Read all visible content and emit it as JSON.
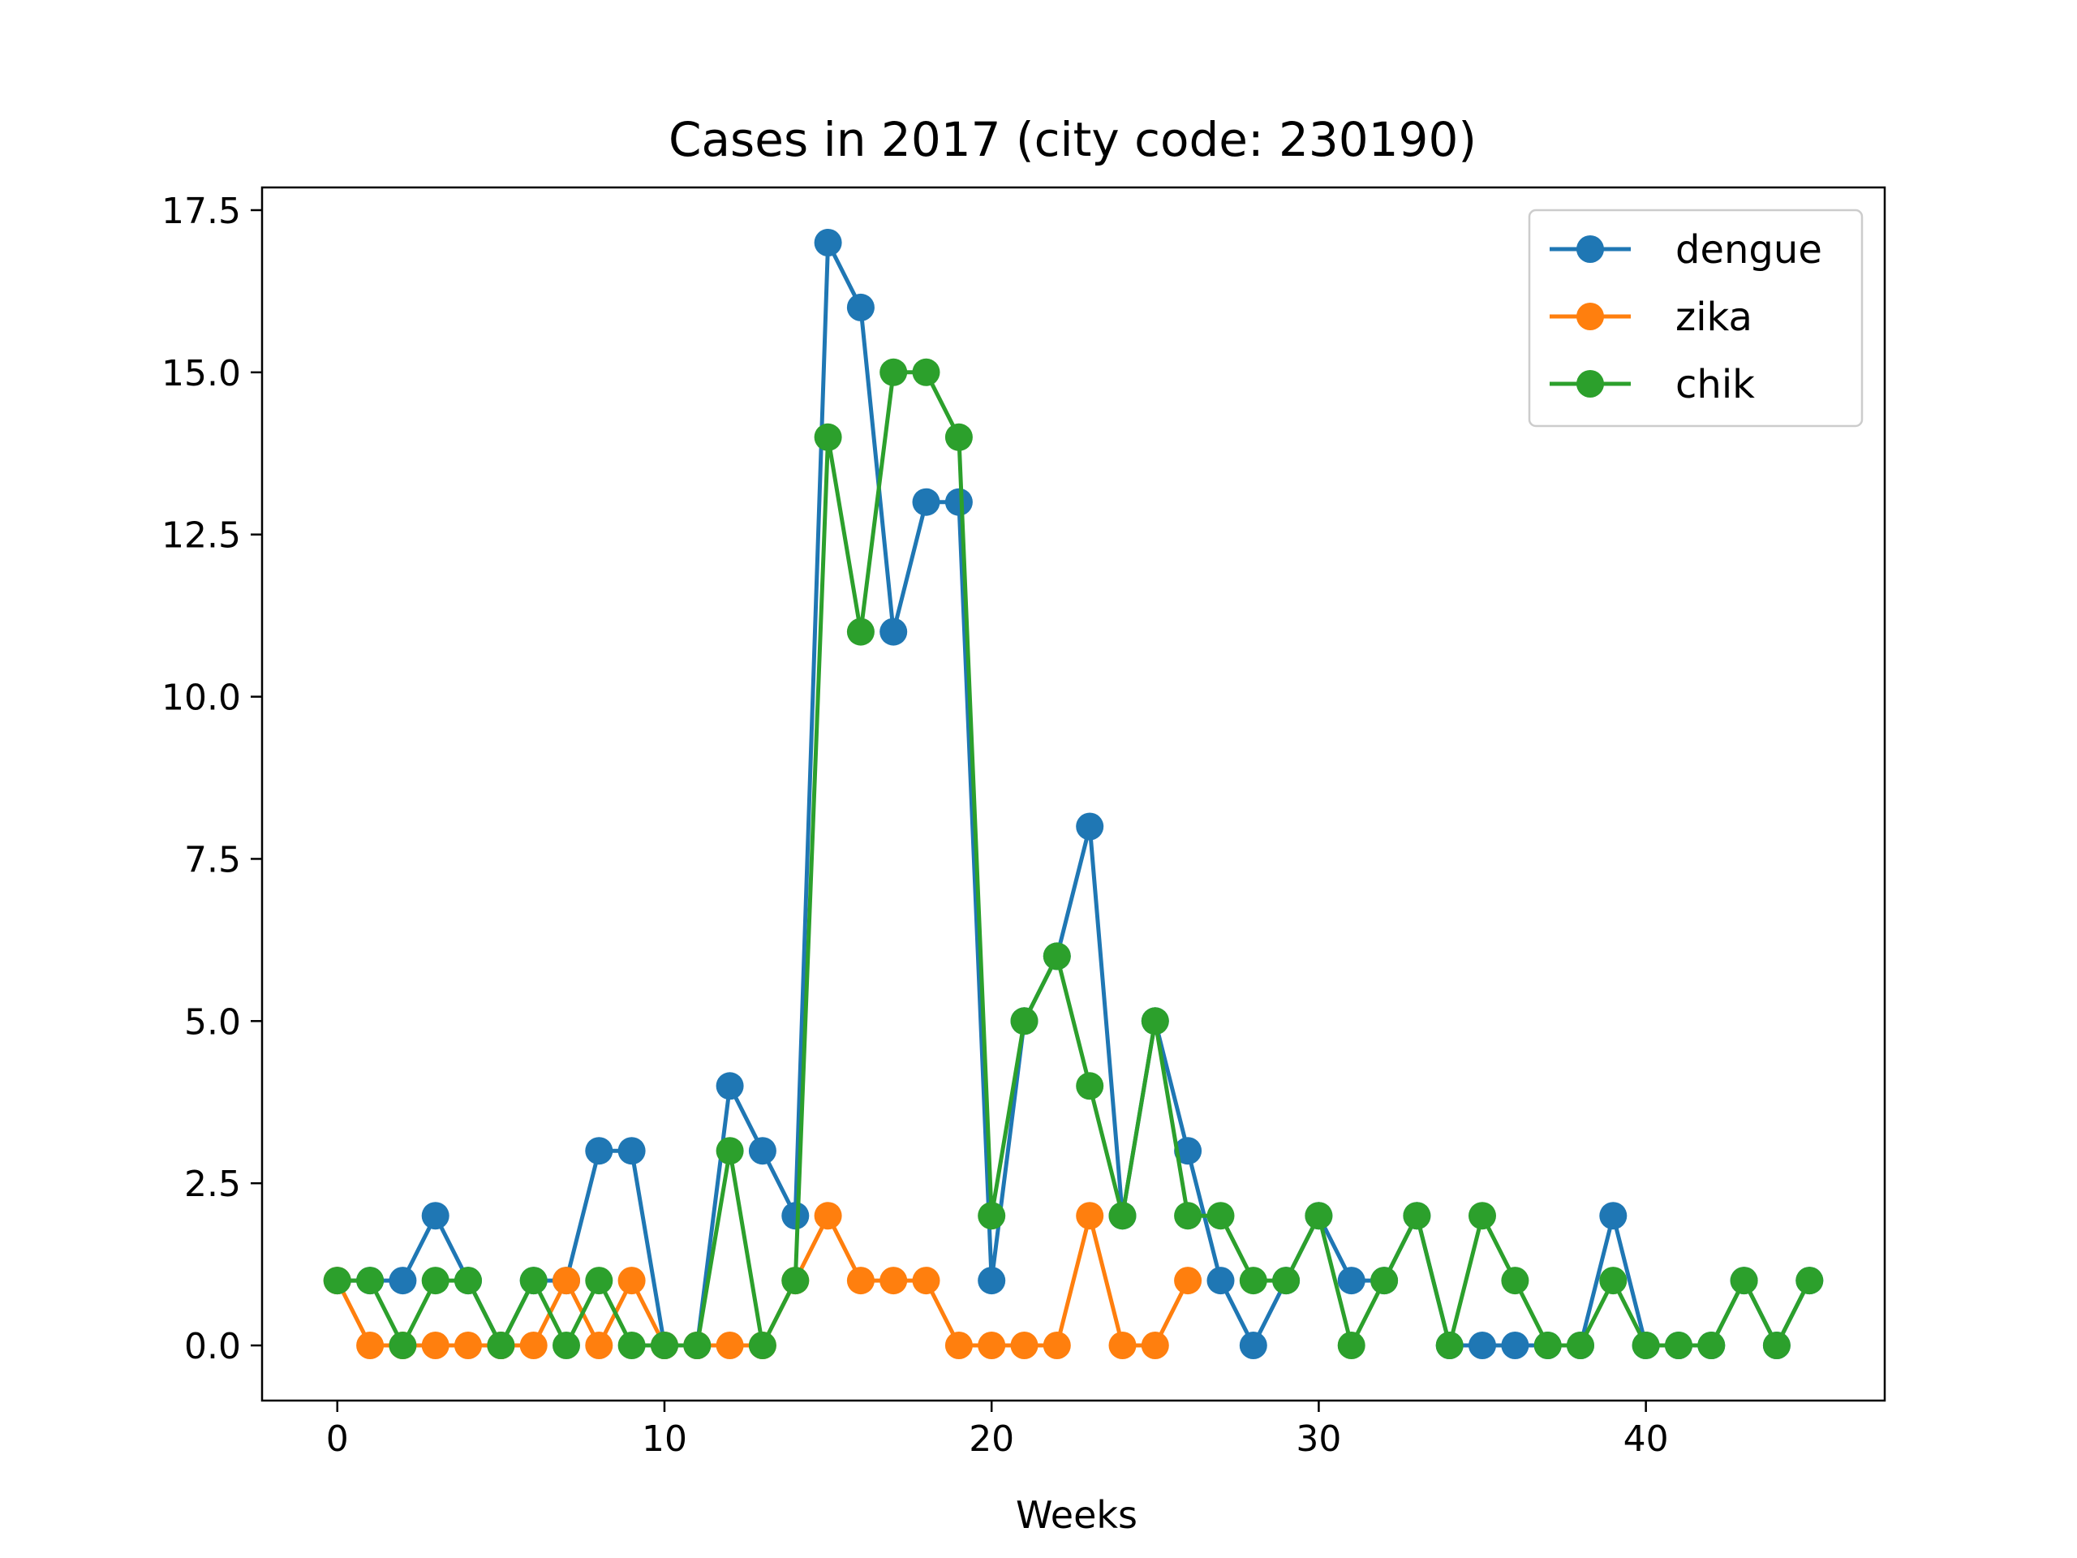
{
  "chart_data": {
    "type": "line",
    "title": "Cases in 2017 (city code: 230190)",
    "xlabel": "Weeks",
    "ylabel": "",
    "xlim": [
      -2.3,
      47.3
    ],
    "ylim": [
      -0.85,
      17.85
    ],
    "xticks": [
      0,
      10,
      20,
      30,
      40
    ],
    "xtick_labels": [
      "0",
      "10",
      "20",
      "30",
      "40"
    ],
    "yticks": [
      0,
      2.5,
      5,
      7.5,
      10,
      12.5,
      15,
      17.5
    ],
    "ytick_labels": [
      "0.0",
      "2.5",
      "5.0",
      "7.5",
      "10.0",
      "12.5",
      "15.0",
      "17.5"
    ],
    "grid": false,
    "legend_position": "top-right",
    "x": [
      0,
      1,
      2,
      3,
      4,
      5,
      6,
      7,
      8,
      9,
      10,
      11,
      12,
      13,
      14,
      15,
      16,
      17,
      18,
      19,
      20,
      21,
      22,
      23,
      24,
      25,
      26,
      27,
      28,
      29,
      30,
      31,
      32,
      33,
      34,
      35,
      36,
      37,
      38,
      39,
      40,
      41,
      42,
      43,
      44,
      45
    ],
    "series": [
      {
        "name": "dengue",
        "color": "#1f77b4",
        "values": [
          1,
          1,
          1,
          2,
          1,
          0,
          1,
          1,
          3,
          3,
          0,
          0,
          4,
          3,
          2,
          17,
          16,
          11,
          13,
          13,
          1,
          5,
          6,
          8,
          2,
          5,
          3,
          1,
          0,
          1,
          2,
          1,
          1,
          2,
          0,
          0,
          0,
          0,
          0,
          2,
          0,
          0,
          0,
          1,
          0,
          1
        ]
      },
      {
        "name": "zika",
        "color": "#ff7f0e",
        "values": [
          1,
          0,
          0,
          0,
          0,
          0,
          0,
          1,
          0,
          1,
          0,
          0,
          0,
          0,
          1,
          2,
          1,
          1,
          1,
          0,
          0,
          0,
          0,
          2,
          0,
          0,
          1,
          null,
          null,
          null,
          null,
          null,
          null,
          null,
          null,
          null,
          null,
          null,
          null,
          null,
          null,
          null,
          null,
          null,
          null,
          null
        ]
      },
      {
        "name": "chik",
        "color": "#2ca02c",
        "values": [
          1,
          1,
          0,
          1,
          1,
          0,
          1,
          0,
          1,
          0,
          0,
          0,
          3,
          0,
          1,
          14,
          11,
          15,
          15,
          14,
          2,
          5,
          6,
          4,
          2,
          5,
          2,
          2,
          1,
          1,
          2,
          0,
          1,
          2,
          0,
          2,
          1,
          0,
          0,
          1,
          0,
          0,
          0,
          1,
          0,
          1
        ]
      }
    ]
  }
}
